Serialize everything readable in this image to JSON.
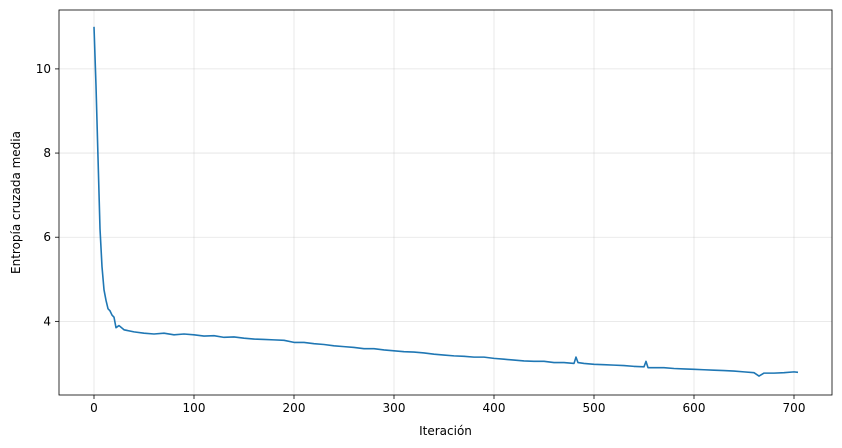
{
  "chart_data": {
    "type": "line",
    "title": "",
    "xlabel": "Iteración",
    "ylabel": "Entropía cruzada media",
    "xlim": [
      -35,
      738
    ],
    "ylim": [
      2.25,
      11.4
    ],
    "xticks": [
      0,
      100,
      200,
      300,
      400,
      500,
      600,
      700
    ],
    "yticks": [
      4,
      6,
      8,
      10
    ],
    "grid": true,
    "series": [
      {
        "color": "#1f77b4",
        "points": [
          [
            0,
            11.0
          ],
          [
            2,
            9.6
          ],
          [
            4,
            7.9
          ],
          [
            6,
            6.2
          ],
          [
            8,
            5.3
          ],
          [
            10,
            4.75
          ],
          [
            12,
            4.5
          ],
          [
            14,
            4.3
          ],
          [
            16,
            4.25
          ],
          [
            18,
            4.15
          ],
          [
            20,
            4.1
          ],
          [
            22,
            3.85
          ],
          [
            25,
            3.9
          ],
          [
            30,
            3.8
          ],
          [
            40,
            3.75
          ],
          [
            50,
            3.72
          ],
          [
            60,
            3.7
          ],
          [
            70,
            3.72
          ],
          [
            80,
            3.68
          ],
          [
            90,
            3.7
          ],
          [
            100,
            3.68
          ],
          [
            110,
            3.65
          ],
          [
            120,
            3.66
          ],
          [
            130,
            3.62
          ],
          [
            140,
            3.63
          ],
          [
            150,
            3.6
          ],
          [
            160,
            3.58
          ],
          [
            170,
            3.57
          ],
          [
            180,
            3.56
          ],
          [
            190,
            3.55
          ],
          [
            200,
            3.5
          ],
          [
            210,
            3.5
          ],
          [
            220,
            3.47
          ],
          [
            230,
            3.45
          ],
          [
            240,
            3.42
          ],
          [
            250,
            3.4
          ],
          [
            260,
            3.38
          ],
          [
            270,
            3.35
          ],
          [
            280,
            3.35
          ],
          [
            290,
            3.32
          ],
          [
            300,
            3.3
          ],
          [
            310,
            3.28
          ],
          [
            320,
            3.27
          ],
          [
            330,
            3.25
          ],
          [
            340,
            3.22
          ],
          [
            350,
            3.2
          ],
          [
            360,
            3.18
          ],
          [
            370,
            3.17
          ],
          [
            380,
            3.15
          ],
          [
            390,
            3.15
          ],
          [
            400,
            3.12
          ],
          [
            410,
            3.1
          ],
          [
            420,
            3.08
          ],
          [
            430,
            3.06
          ],
          [
            440,
            3.05
          ],
          [
            450,
            3.05
          ],
          [
            460,
            3.02
          ],
          [
            470,
            3.02
          ],
          [
            480,
            3.0
          ],
          [
            482,
            3.15
          ],
          [
            484,
            3.02
          ],
          [
            490,
            3.0
          ],
          [
            500,
            2.98
          ],
          [
            510,
            2.97
          ],
          [
            520,
            2.96
          ],
          [
            530,
            2.95
          ],
          [
            540,
            2.93
          ],
          [
            550,
            2.92
          ],
          [
            552,
            3.05
          ],
          [
            554,
            2.9
          ],
          [
            560,
            2.9
          ],
          [
            570,
            2.9
          ],
          [
            580,
            2.88
          ],
          [
            590,
            2.87
          ],
          [
            600,
            2.86
          ],
          [
            610,
            2.85
          ],
          [
            620,
            2.84
          ],
          [
            630,
            2.83
          ],
          [
            640,
            2.82
          ],
          [
            650,
            2.8
          ],
          [
            660,
            2.78
          ],
          [
            665,
            2.7
          ],
          [
            670,
            2.77
          ],
          [
            680,
            2.77
          ],
          [
            690,
            2.78
          ],
          [
            700,
            2.8
          ],
          [
            704,
            2.79
          ]
        ]
      }
    ]
  }
}
